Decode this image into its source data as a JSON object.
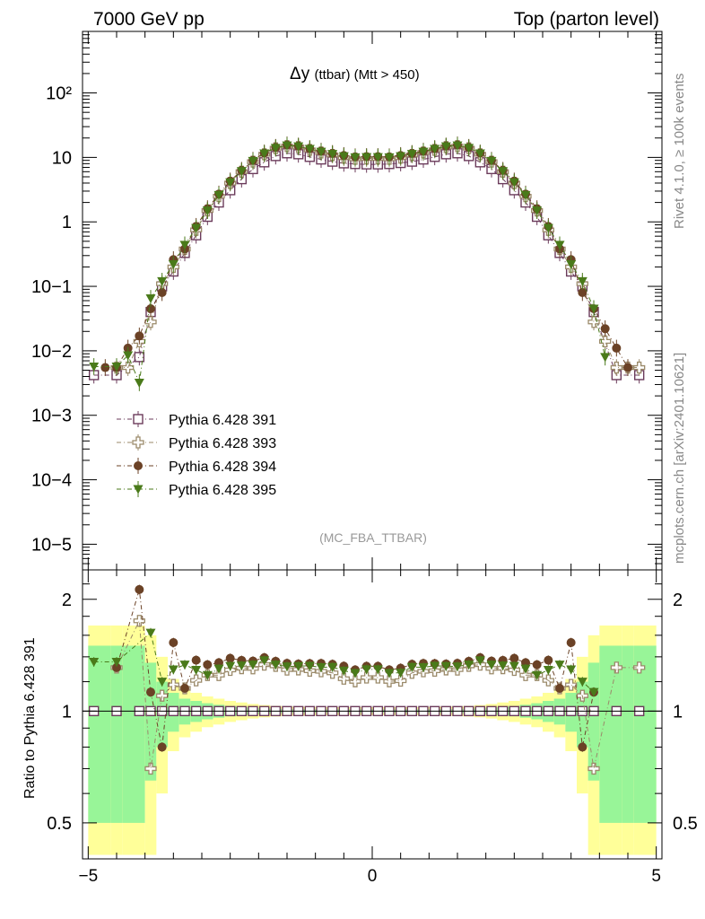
{
  "header": {
    "left": "7000 GeV pp",
    "right": "Top (parton level)"
  },
  "side_text": {
    "top": "Rivet 4.1.0, ≥ 100k events",
    "bottom": "mcplots.cern.ch [arXiv:2401.10621]"
  },
  "chart_data": {
    "type": "scatter",
    "title": "Δy",
    "title_sub": "(ttbar) (Mtt > 450)",
    "analysis_label": "(MC_FBA_TTBAR)",
    "xlabel": "",
    "ylabel": "",
    "ratio_ylabel": "Ratio to Pythia 6.428 391",
    "xlim": [
      -5.1,
      5.1
    ],
    "ylim": [
      4e-06,
      900
    ],
    "ratio_ylim": [
      0.4,
      2.4
    ],
    "yscale": "log",
    "legend_position": "center-left",
    "x_ticks": [
      "−5",
      "0",
      "5"
    ],
    "y_ticks": [
      "10−5",
      "10−4",
      "10−3",
      "10−2",
      "10−1",
      "1",
      "10",
      "10²"
    ],
    "ratio_ticks": [
      "0.5",
      "1",
      "2"
    ],
    "x": [
      -4.9,
      -4.7,
      -4.5,
      -4.3,
      -4.1,
      -3.9,
      -3.7,
      -3.5,
      -3.3,
      -3.1,
      -2.9,
      -2.7,
      -2.5,
      -2.3,
      -2.1,
      -1.9,
      -1.7,
      -1.5,
      -1.3,
      -1.1,
      -0.9,
      -0.7,
      -0.5,
      -0.3,
      -0.1,
      0.1,
      0.3,
      0.5,
      0.7,
      0.9,
      1.1,
      1.3,
      1.5,
      1.7,
      1.9,
      2.1,
      2.3,
      2.5,
      2.7,
      2.9,
      3.1,
      3.3,
      3.5,
      3.7,
      3.9,
      4.1,
      4.3,
      4.5,
      4.7,
      4.9
    ],
    "series": [
      {
        "name": "Pythia 6.428 391",
        "color": "#6b3b5b",
        "marker": "open-square",
        "values": [
          0.0042,
          null,
          0.0042,
          null,
          0.008,
          0.04,
          0.1,
          0.17,
          0.33,
          0.62,
          1.2,
          2.0,
          3.1,
          4.6,
          6.6,
          8.4,
          10.5,
          11.6,
          11.2,
          10.2,
          9.3,
          8.6,
          8.1,
          7.9,
          7.8,
          7.8,
          7.9,
          8.2,
          8.6,
          9.3,
          10.2,
          11.2,
          11.6,
          10.5,
          8.4,
          6.6,
          4.6,
          3.1,
          2.0,
          1.2,
          0.62,
          0.33,
          0.17,
          0.1,
          0.04,
          null,
          0.0042,
          null,
          0.0042,
          null
        ]
      },
      {
        "name": "Pythia 6.428 393",
        "color": "#9b8a6a",
        "marker": "open-cross",
        "values": [
          null,
          null,
          0.0055,
          0.0055,
          0.014,
          0.028,
          0.11,
          0.2,
          0.38,
          0.75,
          1.5,
          2.5,
          4.0,
          6.0,
          8.6,
          11.2,
          13.9,
          15.0,
          14.5,
          13.1,
          11.9,
          10.9,
          9.9,
          9.5,
          9.6,
          9.6,
          9.5,
          9.9,
          10.9,
          11.9,
          13.1,
          14.5,
          15.0,
          13.9,
          11.2,
          8.6,
          6.0,
          4.0,
          2.5,
          1.5,
          0.75,
          0.38,
          0.2,
          0.11,
          0.028,
          0.014,
          0.0055,
          0.0055,
          0.0055,
          null
        ]
      },
      {
        "name": "Pythia 6.428 394",
        "color": "#6b4226",
        "marker": "circle",
        "values": [
          null,
          0.0055,
          0.0055,
          0.011,
          0.017,
          0.045,
          0.08,
          0.26,
          0.38,
          0.85,
          1.6,
          2.7,
          4.3,
          6.3,
          9.0,
          11.7,
          14.3,
          15.6,
          15.0,
          13.7,
          12.5,
          11.5,
          10.7,
          10.2,
          10.3,
          10.3,
          10.2,
          10.7,
          11.5,
          12.5,
          13.7,
          15.0,
          15.6,
          14.3,
          11.7,
          9.0,
          6.3,
          4.3,
          2.7,
          1.6,
          0.85,
          0.38,
          0.26,
          0.08,
          0.045,
          0.022,
          0.011,
          0.0055,
          null,
          null
        ]
      },
      {
        "name": "Pythia 6.428 395",
        "color": "#4a7a1a",
        "marker": "down-triangle",
        "values": [
          0.0057,
          null,
          0.0057,
          0.0085,
          0.0032,
          0.065,
          0.12,
          0.22,
          0.44,
          0.8,
          1.5,
          2.6,
          4.1,
          6.1,
          8.8,
          11.5,
          14.0,
          15.3,
          14.8,
          13.5,
          12.2,
          11.3,
          10.4,
          10.0,
          10.1,
          10.1,
          10.0,
          10.4,
          11.3,
          12.2,
          13.5,
          14.8,
          15.3,
          14.0,
          11.5,
          8.8,
          6.1,
          4.1,
          2.6,
          1.5,
          0.8,
          0.44,
          0.22,
          0.12,
          0.045,
          0.008,
          null,
          null,
          null,
          null
        ]
      }
    ],
    "band": {
      "green_rel": [
        0.5,
        0.5,
        0.5,
        0.5,
        0.5,
        0.35,
        0.2,
        0.12,
        0.08,
        0.065,
        0.05,
        0.04,
        0.032,
        0.026,
        0.02,
        0.017,
        0.015,
        0.013,
        0.012,
        0.012,
        0.011,
        0.011,
        0.011,
        0.011,
        0.011,
        0.011,
        0.011,
        0.011,
        0.011,
        0.011,
        0.012,
        0.012,
        0.013,
        0.015,
        0.017,
        0.02,
        0.026,
        0.032,
        0.04,
        0.05,
        0.065,
        0.08,
        0.12,
        0.2,
        0.35,
        0.5,
        0.5,
        0.5,
        0.5,
        0.5
      ],
      "yellow_rel": [
        0.7,
        0.7,
        0.7,
        0.7,
        0.7,
        0.6,
        0.4,
        0.22,
        0.15,
        0.12,
        0.095,
        0.08,
        0.065,
        0.055,
        0.045,
        0.038,
        0.033,
        0.03,
        0.028,
        0.027,
        0.026,
        0.025,
        0.025,
        0.025,
        0.025,
        0.025,
        0.025,
        0.025,
        0.025,
        0.026,
        0.027,
        0.028,
        0.03,
        0.033,
        0.038,
        0.045,
        0.055,
        0.065,
        0.08,
        0.095,
        0.12,
        0.15,
        0.22,
        0.4,
        0.6,
        0.7,
        0.7,
        0.7,
        0.7,
        0.7
      ],
      "green_color": "#98f598",
      "yellow_color": "#ffff99"
    }
  }
}
